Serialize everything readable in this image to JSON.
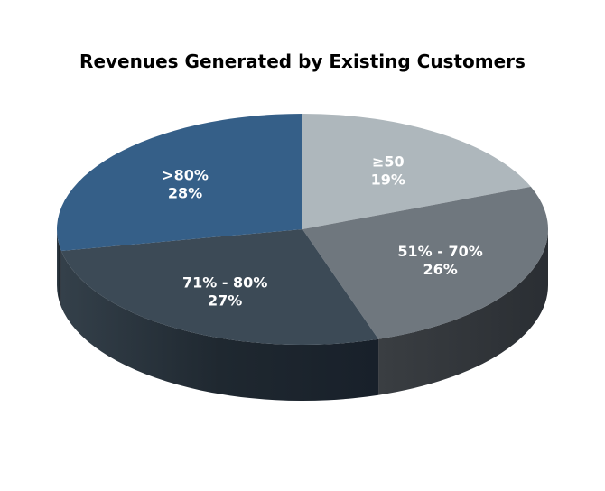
{
  "chart_data": {
    "type": "pie",
    "title": "Revenues Generated by Existing Customers",
    "slices": [
      {
        "label": "≥50",
        "value": 19,
        "value_label": "19%",
        "color": "#aeb7bc"
      },
      {
        "label": "51% - 70%",
        "value": 26,
        "value_label": "26%",
        "color": "#6f777e"
      },
      {
        "label": "71% - 80%",
        "value": 27,
        "value_label": "27%",
        "color": "#3c4a56"
      },
      {
        "label": ">80%",
        "value": 28,
        "value_label": "28%",
        "color": "#355f88"
      }
    ],
    "style": "3d",
    "legend": "none",
    "data_labels": "inside"
  }
}
